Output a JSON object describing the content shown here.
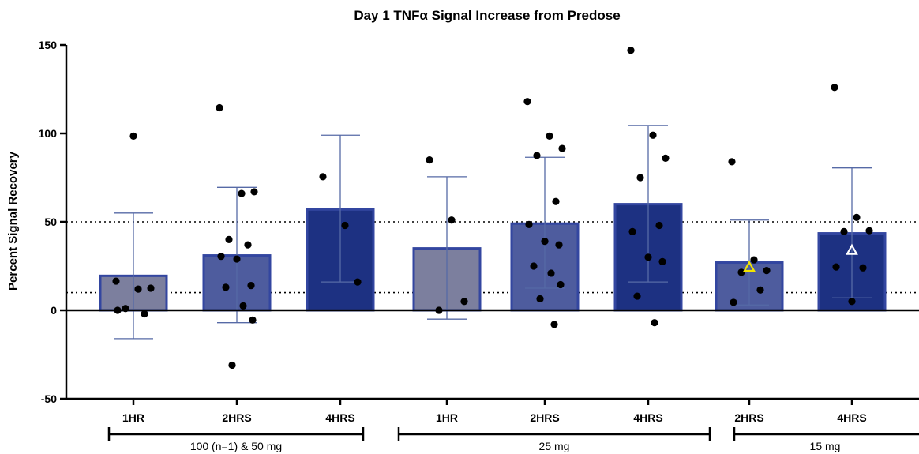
{
  "chart_data": {
    "type": "bar",
    "title": "Day 1 TNFα Signal Increase from Predose",
    "ylabel": "Percent Signal Recovery",
    "xlabel": "",
    "ylim": [
      -50,
      150
    ],
    "y_ticks": [
      "-50",
      "0",
      "50",
      "100",
      "150"
    ],
    "reference_lines": [
      10,
      50
    ],
    "categories": [
      "1HR",
      "2HRS",
      "4HRS",
      "1HR",
      "2HRS",
      "4HRS",
      "2HRS",
      "4HRS"
    ],
    "groups": [
      {
        "label": "100 (n=1) & 50 mg",
        "categories": [
          0,
          1,
          2
        ]
      },
      {
        "label": "25 mg",
        "categories": [
          3,
          4,
          5
        ]
      },
      {
        "label": "15 mg",
        "categories": [
          6,
          7
        ]
      }
    ],
    "colors": {
      "1HR": "#7c7f9e",
      "2HRS": "#4e5c9e",
      "4HRS": "#1d3182",
      "bar_border": "#3346a0",
      "errorbar": "#566aa6",
      "point": "#000000",
      "triangle_yellow": "#f2e400",
      "triangle_white": "#ffffff"
    },
    "bars": [
      {
        "category": "1HR",
        "mean": 19.5,
        "err_low": -16,
        "err_high": 55,
        "points": [
          16.5,
          12,
          12.5,
          1,
          -2,
          0,
          98.5
        ]
      },
      {
        "category": "2HRS",
        "mean": 31,
        "err_low": -7,
        "err_high": 69.5,
        "points": [
          114.5,
          66,
          67,
          40,
          37,
          30.5,
          29,
          14,
          13,
          2.5,
          -5.5,
          -31
        ]
      },
      {
        "category": "4HRS",
        "mean": 57,
        "err_low": 16,
        "err_high": 99,
        "points": [
          75.5,
          48,
          16
        ]
      },
      {
        "category": "1HR",
        "mean": 35,
        "err_low": -5,
        "err_high": 75.5,
        "points": [
          85,
          51,
          5,
          0
        ]
      },
      {
        "category": "2HRS",
        "mean": 49,
        "err_low": 12.5,
        "err_high": 86.5,
        "points": [
          118,
          98.5,
          91.5,
          87.5,
          61.5,
          48.5,
          39,
          37,
          25,
          21,
          14.5,
          6.5,
          -8
        ]
      },
      {
        "category": "4HRS",
        "mean": 60,
        "err_low": 16,
        "err_high": 104.5,
        "points": [
          147,
          99,
          86,
          75,
          48,
          44.5,
          30,
          27.5,
          8,
          -7
        ]
      },
      {
        "category": "2HRS",
        "mean": 27,
        "err_low": 3,
        "err_high": 51,
        "points": [
          84,
          28.5,
          22.5,
          21.5,
          11.5,
          4.5
        ],
        "triangle": {
          "value": 24.5,
          "color": "yellow"
        }
      },
      {
        "category": "4HRS",
        "mean": 43.5,
        "err_low": 7,
        "err_high": 80.5,
        "points": [
          126,
          52.5,
          45,
          44.5,
          24,
          24.5,
          5
        ],
        "triangle": {
          "value": 34,
          "color": "white"
        }
      }
    ]
  }
}
